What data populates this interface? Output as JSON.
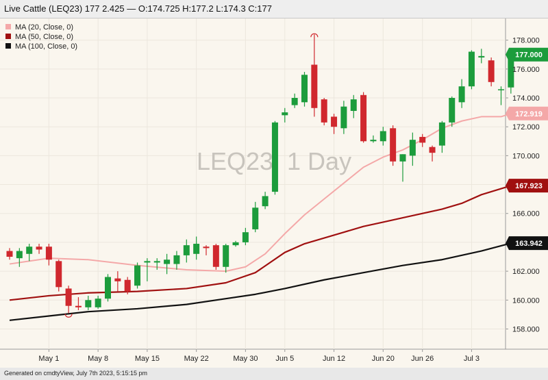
{
  "header": {
    "title": "Live Cattle (LEQ23) 177 2.425 — O:174.725 H:177.2 L:174.3 C:177"
  },
  "footer": {
    "text": "Generated on cmdtyView, July 7th 2023, 5:15:15 pm"
  },
  "colors": {
    "up": "#1c9c3c",
    "down": "#d0282e",
    "ma20": "#f4a8a8",
    "ma50": "#a01010",
    "ma100": "#111111",
    "background": "#faf6ee"
  },
  "chart_data": {
    "type": "candlestick",
    "watermark": "LEQ23, 1 Day",
    "ylim": [
      156.6,
      179.5
    ],
    "yticks": [
      "158.000",
      "160.000",
      "162.000",
      "164.000",
      "166.000",
      "168.000",
      "170.000",
      "172.000",
      "174.000",
      "176.000",
      "178.000"
    ],
    "xticks": [
      {
        "label": "May 1",
        "index": 4
      },
      {
        "label": "May 8",
        "index": 9
      },
      {
        "label": "May 15",
        "index": 14
      },
      {
        "label": "May 22",
        "index": 19
      },
      {
        "label": "May 30",
        "index": 24
      },
      {
        "label": "Jun 5",
        "index": 28
      },
      {
        "label": "Jun 12",
        "index": 33
      },
      {
        "label": "Jun 20",
        "index": 38
      },
      {
        "label": "Jun 26",
        "index": 42
      },
      {
        "label": "Jul 3",
        "index": 47
      }
    ],
    "candles": [
      {
        "o": 163.4,
        "h": 163.6,
        "l": 162.8,
        "c": 163.0
      },
      {
        "o": 162.9,
        "h": 163.6,
        "l": 162.3,
        "c": 163.4
      },
      {
        "o": 163.2,
        "h": 163.9,
        "l": 162.7,
        "c": 163.7
      },
      {
        "o": 163.7,
        "h": 163.9,
        "l": 163.2,
        "c": 163.5
      },
      {
        "o": 163.7,
        "h": 163.9,
        "l": 162.4,
        "c": 162.8
      },
      {
        "o": 162.7,
        "h": 162.8,
        "l": 160.6,
        "c": 160.9
      },
      {
        "o": 160.8,
        "h": 161.0,
        "l": 159.1,
        "c": 159.6
      },
      {
        "o": 159.6,
        "h": 160.2,
        "l": 159.3,
        "c": 159.5
      },
      {
        "o": 159.5,
        "h": 160.3,
        "l": 159.3,
        "c": 160.0
      },
      {
        "o": 159.5,
        "h": 160.3,
        "l": 159.4,
        "c": 160.1
      },
      {
        "o": 160.1,
        "h": 161.8,
        "l": 159.9,
        "c": 161.6
      },
      {
        "o": 161.5,
        "h": 162.0,
        "l": 160.6,
        "c": 161.3
      },
      {
        "o": 161.4,
        "h": 161.6,
        "l": 160.4,
        "c": 160.6
      },
      {
        "o": 161.0,
        "h": 162.6,
        "l": 160.8,
        "c": 162.4
      },
      {
        "o": 162.6,
        "h": 162.9,
        "l": 161.3,
        "c": 162.7
      },
      {
        "o": 162.6,
        "h": 162.9,
        "l": 162.1,
        "c": 162.7
      },
      {
        "o": 162.5,
        "h": 163.2,
        "l": 161.8,
        "c": 162.8
      },
      {
        "o": 162.5,
        "h": 163.4,
        "l": 162.1,
        "c": 163.1
      },
      {
        "o": 163.1,
        "h": 164.2,
        "l": 162.6,
        "c": 163.8
      },
      {
        "o": 163.2,
        "h": 164.4,
        "l": 162.8,
        "c": 163.9
      },
      {
        "o": 163.7,
        "h": 163.8,
        "l": 163.1,
        "c": 163.6
      },
      {
        "o": 163.8,
        "h": 163.9,
        "l": 162.1,
        "c": 162.3
      },
      {
        "o": 162.3,
        "h": 163.9,
        "l": 161.9,
        "c": 163.8
      },
      {
        "o": 163.8,
        "h": 164.1,
        "l": 163.7,
        "c": 164.0
      },
      {
        "o": 164.0,
        "h": 165.0,
        "l": 163.8,
        "c": 164.7
      },
      {
        "o": 164.9,
        "h": 166.8,
        "l": 164.7,
        "c": 166.4
      },
      {
        "o": 166.5,
        "h": 167.5,
        "l": 166.3,
        "c": 167.2
      },
      {
        "o": 167.5,
        "h": 172.4,
        "l": 167.3,
        "c": 172.3
      },
      {
        "o": 172.8,
        "h": 173.3,
        "l": 172.3,
        "c": 173.0
      },
      {
        "o": 173.5,
        "h": 174.3,
        "l": 173.3,
        "c": 174.0
      },
      {
        "o": 173.7,
        "h": 175.8,
        "l": 173.4,
        "c": 175.6
      },
      {
        "o": 176.3,
        "h": 178.4,
        "l": 172.7,
        "c": 173.3
      },
      {
        "o": 173.9,
        "h": 174.0,
        "l": 172.1,
        "c": 172.3
      },
      {
        "o": 172.7,
        "h": 172.9,
        "l": 171.5,
        "c": 172.0
      },
      {
        "o": 171.9,
        "h": 173.8,
        "l": 171.5,
        "c": 173.4
      },
      {
        "o": 173.1,
        "h": 174.2,
        "l": 172.6,
        "c": 173.9
      },
      {
        "o": 174.2,
        "h": 174.4,
        "l": 170.9,
        "c": 171.0
      },
      {
        "o": 171.0,
        "h": 171.4,
        "l": 170.9,
        "c": 171.1
      },
      {
        "o": 171.0,
        "h": 172.0,
        "l": 170.7,
        "c": 171.7
      },
      {
        "o": 171.9,
        "h": 172.1,
        "l": 169.3,
        "c": 169.6
      },
      {
        "o": 169.6,
        "h": 170.1,
        "l": 168.2,
        "c": 170.1
      },
      {
        "o": 170.0,
        "h": 171.6,
        "l": 169.3,
        "c": 171.1
      },
      {
        "o": 171.3,
        "h": 171.5,
        "l": 170.6,
        "c": 170.9
      },
      {
        "o": 170.6,
        "h": 170.7,
        "l": 169.6,
        "c": 170.2
      },
      {
        "o": 170.7,
        "h": 172.4,
        "l": 170.2,
        "c": 172.3
      },
      {
        "o": 172.3,
        "h": 174.1,
        "l": 172.0,
        "c": 174.0
      },
      {
        "o": 173.7,
        "h": 175.3,
        "l": 173.3,
        "c": 174.8
      },
      {
        "o": 174.8,
        "h": 177.3,
        "l": 174.6,
        "c": 177.2
      },
      {
        "o": 176.8,
        "h": 177.4,
        "l": 176.4,
        "c": 176.9
      },
      {
        "o": 176.6,
        "h": 176.8,
        "l": 174.8,
        "c": 175.1
      },
      {
        "o": 174.6,
        "h": 174.8,
        "l": 173.5,
        "c": 174.6
      },
      {
        "o": 174.725,
        "h": 177.2,
        "l": 174.3,
        "c": 177.0
      }
    ],
    "series": [
      {
        "name": "MA (20, Close, 0)",
        "color": "#f4a8a8",
        "last_label": "172.919",
        "points": [
          [
            0,
            162.5
          ],
          [
            4,
            162.9
          ],
          [
            8,
            162.8
          ],
          [
            13,
            162.4
          ],
          [
            18,
            162.1
          ],
          [
            22,
            162.0
          ],
          [
            24,
            162.3
          ],
          [
            26,
            163.2
          ],
          [
            28,
            164.6
          ],
          [
            30,
            165.9
          ],
          [
            32,
            167.0
          ],
          [
            34,
            168.1
          ],
          [
            36,
            169.2
          ],
          [
            38,
            169.9
          ],
          [
            40,
            170.4
          ],
          [
            42,
            171.1
          ],
          [
            44,
            171.9
          ],
          [
            46,
            172.4
          ],
          [
            48,
            172.7
          ],
          [
            50,
            172.7
          ],
          [
            51,
            172.919
          ]
        ]
      },
      {
        "name": "MA (50, Close, 0)",
        "color": "#a01010",
        "last_label": "167.923",
        "points": [
          [
            0,
            160.0
          ],
          [
            4,
            160.3
          ],
          [
            8,
            160.5
          ],
          [
            13,
            160.6
          ],
          [
            18,
            160.8
          ],
          [
            22,
            161.2
          ],
          [
            25,
            161.9
          ],
          [
            28,
            163.3
          ],
          [
            30,
            163.9
          ],
          [
            34,
            164.7
          ],
          [
            36,
            165.1
          ],
          [
            38,
            165.4
          ],
          [
            40,
            165.7
          ],
          [
            44,
            166.3
          ],
          [
            46,
            166.7
          ],
          [
            48,
            167.3
          ],
          [
            51,
            167.923
          ]
        ]
      },
      {
        "name": "MA (100, Close, 0)",
        "color": "#111111",
        "last_label": "163.942",
        "points": [
          [
            0,
            158.6
          ],
          [
            4,
            158.9
          ],
          [
            8,
            159.2
          ],
          [
            13,
            159.4
          ],
          [
            18,
            159.7
          ],
          [
            22,
            160.1
          ],
          [
            25,
            160.4
          ],
          [
            28,
            160.8
          ],
          [
            32,
            161.4
          ],
          [
            36,
            161.9
          ],
          [
            40,
            162.4
          ],
          [
            44,
            162.8
          ],
          [
            48,
            163.4
          ],
          [
            51,
            163.942
          ]
        ]
      }
    ],
    "last_price_label": "177.000"
  }
}
